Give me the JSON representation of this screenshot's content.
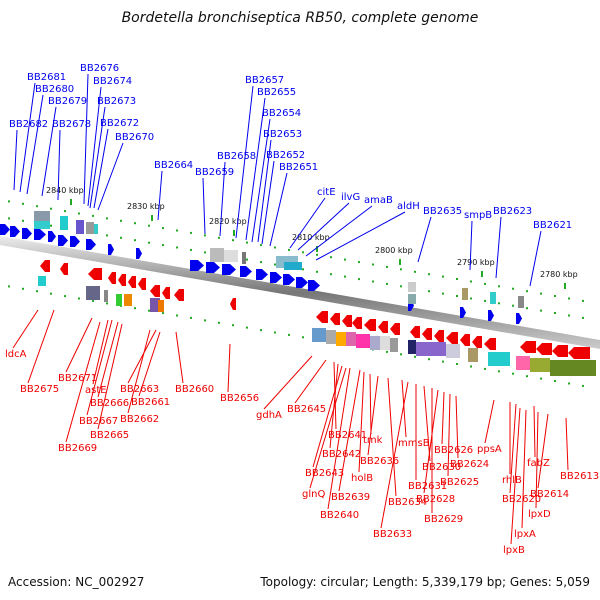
{
  "title": "Bordetella bronchiseptica RB50, complete genome",
  "footer": {
    "accession": "Accession: NC_002927",
    "summary": "Topology: circular; Length: 5,339,179 bp; Genes: 5,059"
  },
  "colors": {
    "forward": "#0000ee",
    "reverse": "#ee0000",
    "backbone": "#888888",
    "tick": "#22aa22"
  },
  "scale_ticks": [
    "2840 kbp",
    "2830 kbp",
    "2820 kbp",
    "2810 kbp",
    "2800 kbp",
    "2790 kbp",
    "2780 kbp"
  ],
  "forward_labels": [
    "BB2682",
    "BB2681",
    "BB2680",
    "BB2679",
    "BB2678",
    "BB2676",
    "BB2674",
    "BB2673",
    "BB2672",
    "BB2670",
    "BB2664",
    "BB2659",
    "BB2658",
    "BB2657",
    "BB2655",
    "BB2654",
    "BB2653",
    "BB2652",
    "BB2651",
    "citE",
    "ilvG",
    "amaB",
    "aldH",
    "BB2635",
    "smpB",
    "BB2623",
    "BB2621"
  ],
  "reverse_labels": [
    "ldcA",
    "BB2675",
    "BB2671",
    "astE",
    "BB2667",
    "BB2666",
    "BB2665",
    "BB2669",
    "BB2663",
    "BB2661",
    "BB2662",
    "BB2660",
    "BB2656",
    "gdhA",
    "BB2645",
    "BB2641",
    "BB2642",
    "BB2643",
    "glnQ",
    "BB2640",
    "BB2639",
    "holB",
    "tmk",
    "BB2636",
    "BB2634",
    "mmsB",
    "BB2633",
    "BB2631",
    "BB2630",
    "BB2629",
    "BB2628",
    "BB2626",
    "BB2625",
    "BB2624",
    "ppsA",
    "rhlB",
    "BB2620",
    "fabZ",
    "lpxB",
    "lpxA",
    "lpxD",
    "BB2614",
    "BB2613"
  ]
}
